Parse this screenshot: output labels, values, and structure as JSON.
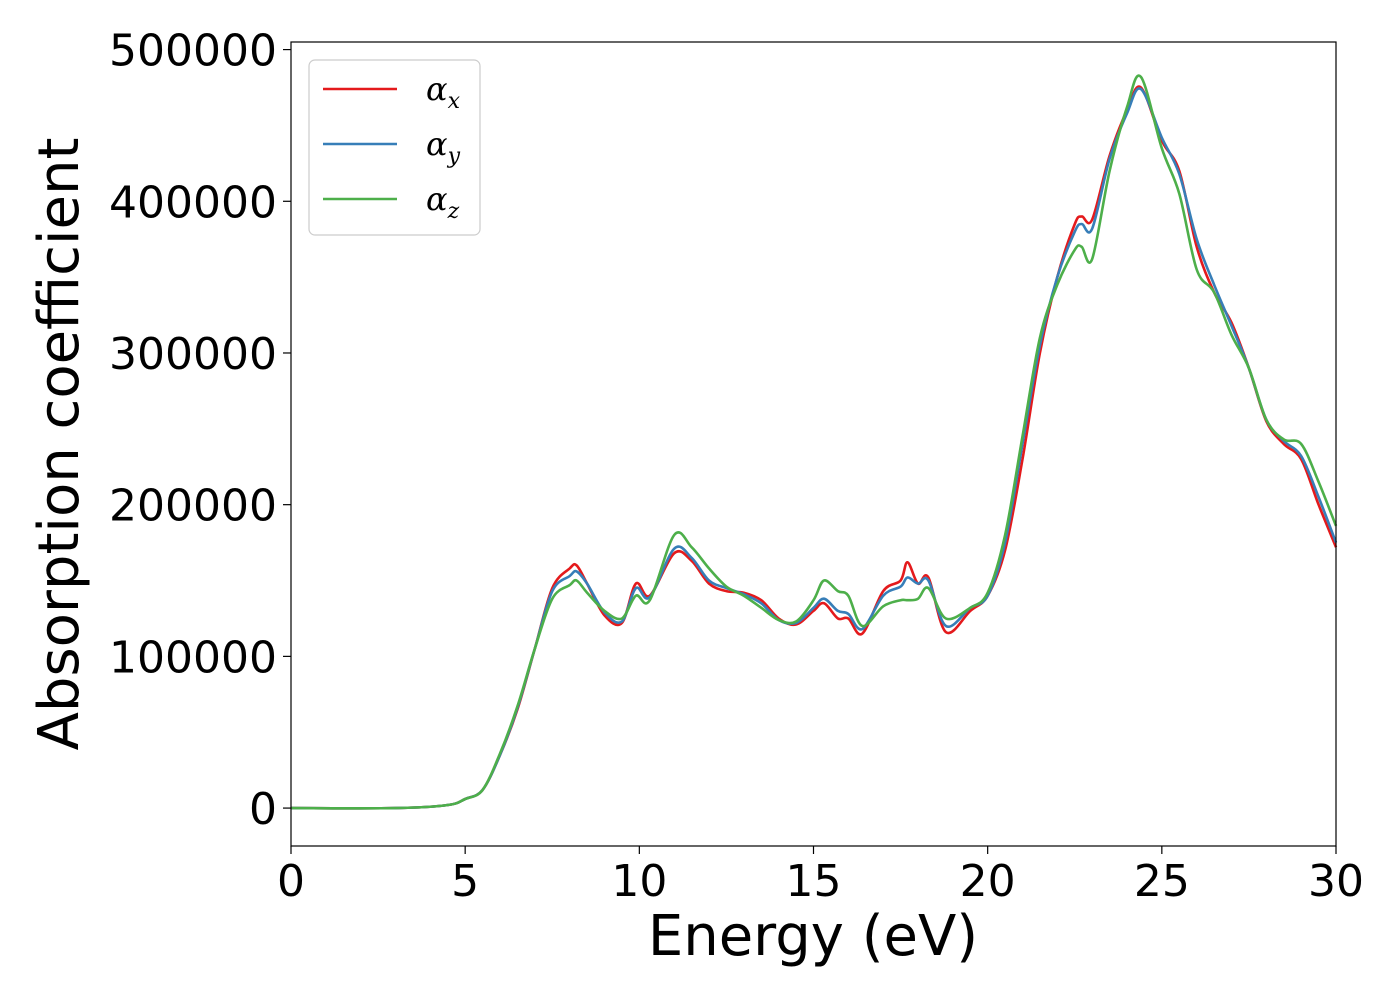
{
  "chart_data": {
    "type": "line",
    "title": "",
    "xlabel": "Energy (eV)",
    "ylabel": "Absorption coefficient",
    "xlim": [
      0,
      30
    ],
    "ylim": [
      -25000,
      505000
    ],
    "xticks": [
      0,
      5,
      10,
      15,
      20,
      25,
      30
    ],
    "xtick_labels": [
      "0",
      "5",
      "10",
      "15",
      "20",
      "25",
      "30"
    ],
    "yticks": [
      0,
      100000,
      200000,
      300000,
      400000,
      500000
    ],
    "ytick_labels": [
      "0",
      "100000",
      "200000",
      "300000",
      "400000",
      "500000"
    ],
    "grid": false,
    "legend_position": "top-left",
    "legend": [
      {
        "symbol": "α",
        "sub": "x"
      },
      {
        "symbol": "α",
        "sub": "y"
      },
      {
        "symbol": "α",
        "sub": "z"
      }
    ],
    "series": [
      {
        "color": "#e41a1c",
        "x": [
          0,
          3,
          4.5,
          5,
          5.5,
          6,
          6.5,
          7,
          7.5,
          8,
          8.2,
          8.5,
          9,
          9.5,
          9.9,
          10.3,
          11,
          11.5,
          12,
          12.5,
          13,
          13.5,
          14,
          14.5,
          15,
          15.3,
          15.7,
          16,
          16.4,
          17,
          17.5,
          17.7,
          18,
          18.3,
          18.8,
          19.5,
          20,
          20.5,
          21,
          21.5,
          22,
          22.5,
          22.7,
          23,
          23.5,
          24,
          24.4,
          25,
          25.5,
          26,
          26.5,
          27,
          27.5,
          28,
          28.5,
          29,
          29.5,
          30
        ],
        "y": [
          0,
          0,
          2000,
          6000,
          12000,
          35000,
          65000,
          105000,
          145000,
          158000,
          160000,
          148000,
          127000,
          122000,
          148000,
          140000,
          168000,
          163000,
          148000,
          143000,
          142000,
          137000,
          125000,
          121000,
          130000,
          135000,
          125000,
          125000,
          115000,
          143000,
          150000,
          162000,
          148000,
          152000,
          116000,
          130000,
          140000,
          170000,
          230000,
          300000,
          350000,
          385000,
          390000,
          388000,
          430000,
          460000,
          475000,
          440000,
          420000,
          370000,
          340000,
          320000,
          290000,
          255000,
          240000,
          230000,
          200000,
          172000
        ]
      },
      {
        "color": "#377eb8",
        "x": [
          0,
          3,
          4.5,
          5,
          5.5,
          6,
          6.5,
          7,
          7.5,
          8,
          8.2,
          8.5,
          9,
          9.5,
          9.9,
          10.3,
          11,
          11.5,
          12,
          12.5,
          13,
          13.5,
          14,
          14.5,
          15,
          15.3,
          15.7,
          16,
          16.4,
          17,
          17.5,
          17.7,
          18,
          18.3,
          18.8,
          19.5,
          20,
          20.5,
          21,
          21.5,
          22,
          22.5,
          22.7,
          23,
          23.5,
          24,
          24.4,
          25,
          25.5,
          26,
          26.5,
          27,
          27.5,
          28,
          28.5,
          29,
          29.5,
          30
        ],
        "y": [
          0,
          0,
          2000,
          6000,
          12000,
          35000,
          66000,
          105000,
          143000,
          153000,
          156000,
          148000,
          129000,
          123000,
          145000,
          139000,
          171000,
          165000,
          150000,
          145000,
          141000,
          135000,
          124000,
          122000,
          132000,
          138000,
          130000,
          128000,
          118000,
          140000,
          146000,
          152000,
          148000,
          150000,
          120000,
          132000,
          140000,
          175000,
          240000,
          305000,
          350000,
          380000,
          385000,
          382000,
          428000,
          458000,
          474000,
          442000,
          418000,
          375000,
          345000,
          318000,
          290000,
          256000,
          242000,
          232000,
          205000,
          175000
        ]
      },
      {
        "color": "#4daf4a",
        "x": [
          0,
          3,
          4.5,
          5,
          5.5,
          6,
          6.5,
          7,
          7.5,
          8,
          8.2,
          8.5,
          9,
          9.5,
          9.9,
          10.3,
          11,
          11.5,
          12,
          12.5,
          13,
          13.5,
          14,
          14.5,
          15,
          15.3,
          15.7,
          16,
          16.4,
          17,
          17.5,
          17.7,
          18,
          18.3,
          18.8,
          19.5,
          20,
          20.5,
          21,
          21.5,
          22,
          22.5,
          22.7,
          23,
          23.5,
          24,
          24.4,
          25,
          25.5,
          26,
          26.5,
          27,
          27.5,
          28,
          28.5,
          29,
          29.5,
          30
        ],
        "y": [
          0,
          0,
          2000,
          6000,
          12000,
          36000,
          67000,
          105000,
          138000,
          147000,
          150000,
          142000,
          130000,
          125000,
          140000,
          137000,
          180000,
          172000,
          158000,
          146000,
          140000,
          132000,
          124000,
          123000,
          137000,
          150000,
          143000,
          140000,
          120000,
          133000,
          137000,
          137000,
          138000,
          145000,
          125000,
          132000,
          142000,
          180000,
          245000,
          310000,
          345000,
          368000,
          370000,
          362000,
          420000,
          462000,
          482000,
          435000,
          405000,
          355000,
          340000,
          312000,
          290000,
          256000,
          243000,
          240000,
          215000,
          186000
        ]
      }
    ]
  }
}
